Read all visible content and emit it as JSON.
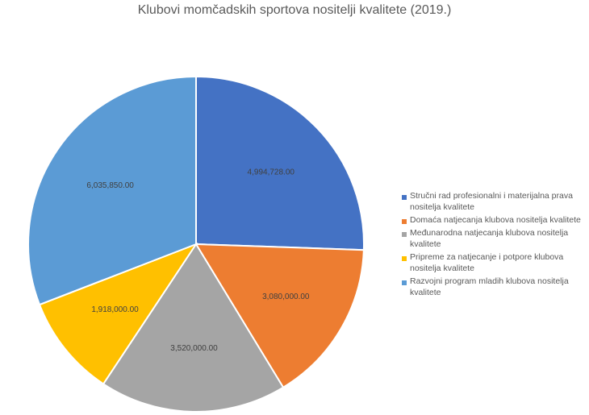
{
  "chart_data": {
    "type": "pie",
    "title": "Klubovi momčadskih sportova nositelji kvalitete (2019.)",
    "legend_position": "right",
    "slices": [
      {
        "label": "Stručni rad profesionalni i materijalna prava nositelja kvalitete",
        "value": 4994728.0,
        "display": "4,994,728.00",
        "color": "#4472C4"
      },
      {
        "label": "Domaća natjecanja klubova nositelja kvalitete",
        "value": 3080000.0,
        "display": "3,080,000.00",
        "color": "#ED7D31"
      },
      {
        "label": "Međunarodna natjecanja klubova nositelja kvalitete",
        "value": 3520000.0,
        "display": "3,520,000.00",
        "color": "#A5A5A5"
      },
      {
        "label": "Pripreme za natjecanje i potpore klubova nositelja kvalitete",
        "value": 1918000.0,
        "display": "1,918,000.00",
        "color": "#FFC000"
      },
      {
        "label": "Razvojni program mladih klubova nositelja kvalitete",
        "value": 6035850.0,
        "display": "6,035,850.00",
        "color": "#5B9BD5"
      }
    ]
  }
}
